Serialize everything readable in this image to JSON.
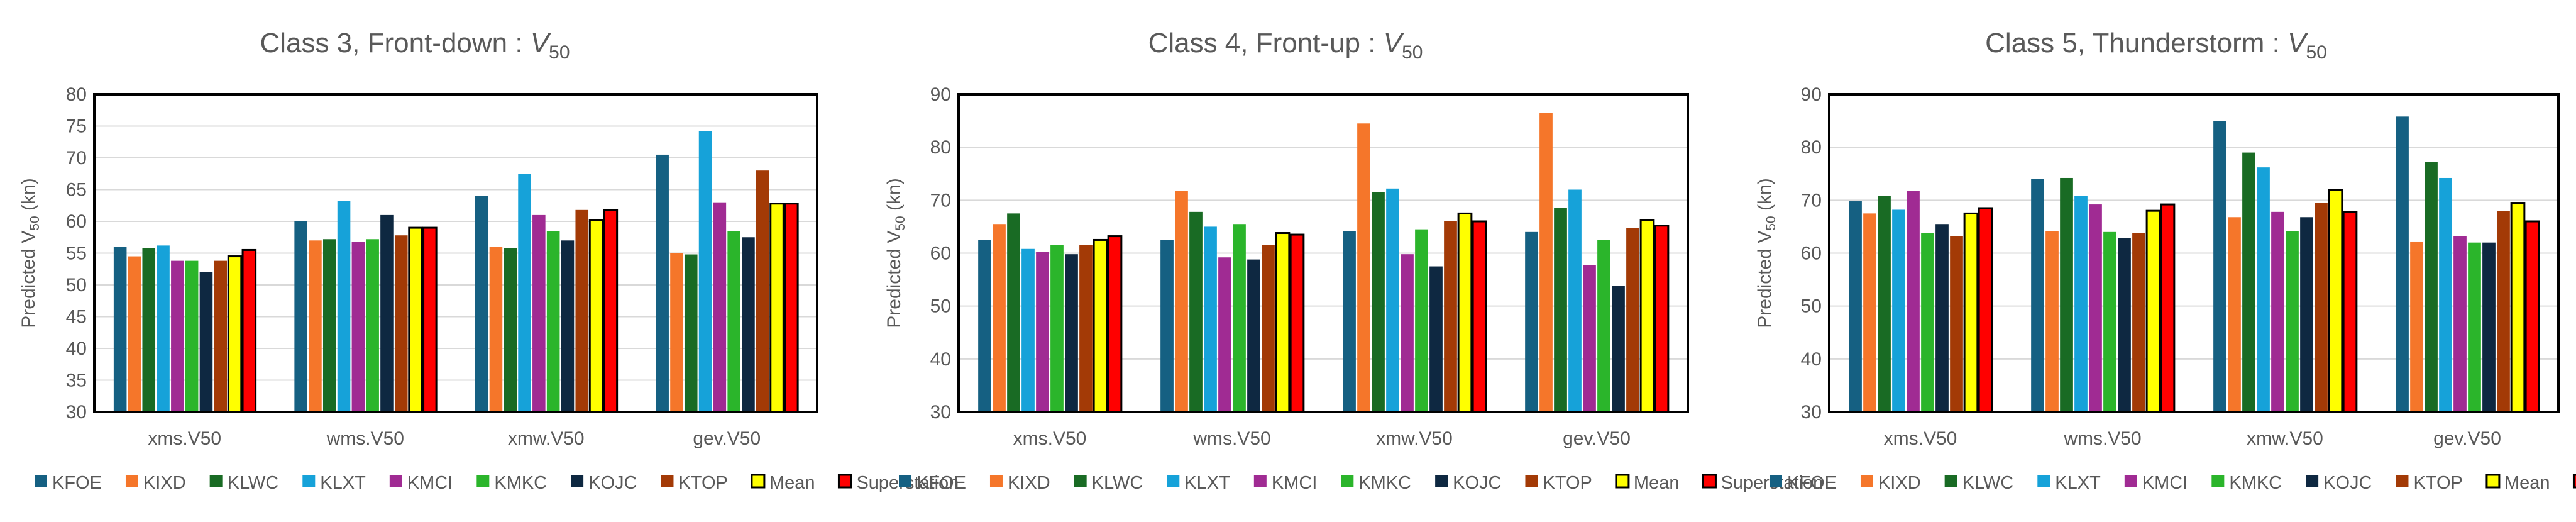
{
  "legend_order": [
    "KFOE",
    "KIXD",
    "KLWC",
    "KLXT",
    "KMCI",
    "KMKC",
    "KOJC",
    "KTOP",
    "Mean",
    "Superstation"
  ],
  "colors": {
    "KFOE": "#156082",
    "KIXD": "#F5762A",
    "KLWC": "#196B24",
    "KLXT": "#16A2D9",
    "KMCI": "#A02B93",
    "KMKC": "#2BB52B",
    "KOJC": "#0E2841",
    "KTOP": "#A33A06",
    "Mean": "#FFFF00",
    "Superstation": "#FF0000"
  },
  "outlined_series": [
    "Mean",
    "Superstation"
  ],
  "chart_data": [
    {
      "type": "bar",
      "title_text": "Class 3, Front-down",
      "title_var": "V",
      "title_sub": "50",
      "ylabel_main": "Predicted V",
      "ylabel_sub": "50",
      "ylabel_unit": " (kn)",
      "ylim": [
        30,
        80
      ],
      "ystep": 5,
      "yticks": [
        "30",
        "35",
        "40",
        "45",
        "50",
        "55",
        "60",
        "65",
        "70",
        "75",
        "80"
      ],
      "categories": [
        "xms.V50",
        "wms.V50",
        "xmw.V50",
        "gev.V50"
      ],
      "grid": true,
      "legend_position": "bottom",
      "series": [
        {
          "name": "KFOE",
          "values": [
            56.0,
            60.0,
            64.0,
            70.5
          ]
        },
        {
          "name": "KIXD",
          "values": [
            54.5,
            57.0,
            56.0,
            55.0
          ]
        },
        {
          "name": "KLWC",
          "values": [
            55.8,
            57.2,
            55.8,
            54.8
          ]
        },
        {
          "name": "KLXT",
          "values": [
            56.2,
            63.2,
            67.5,
            74.2
          ]
        },
        {
          "name": "KMCI",
          "values": [
            53.8,
            56.8,
            61.0,
            63.0
          ]
        },
        {
          "name": "KMKC",
          "values": [
            53.8,
            57.2,
            58.5,
            58.5
          ]
        },
        {
          "name": "KOJC",
          "values": [
            52.0,
            61.0,
            57.0,
            57.5
          ]
        },
        {
          "name": "KTOP",
          "values": [
            53.8,
            57.8,
            61.8,
            68.0
          ]
        },
        {
          "name": "Mean",
          "values": [
            54.5,
            59.0,
            60.2,
            62.8
          ]
        },
        {
          "name": "Superstation",
          "values": [
            55.5,
            59.0,
            61.8,
            62.8
          ]
        }
      ]
    },
    {
      "type": "bar",
      "title_text": "Class 4, Front-up",
      "title_var": "V",
      "title_sub": "50",
      "ylabel_main": "Predicted V",
      "ylabel_sub": "50",
      "ylabel_unit": " (kn)",
      "ylim": [
        30,
        90
      ],
      "ystep": 10,
      "yticks": [
        "30",
        "40",
        "50",
        "60",
        "70",
        "80",
        "90"
      ],
      "categories": [
        "xms.V50",
        "wms.V50",
        "xmw.V50",
        "gev.V50"
      ],
      "grid": true,
      "legend_position": "bottom",
      "series": [
        {
          "name": "KFOE",
          "values": [
            62.5,
            62.5,
            64.2,
            64.0
          ]
        },
        {
          "name": "KIXD",
          "values": [
            65.5,
            71.8,
            84.5,
            86.5
          ]
        },
        {
          "name": "KLWC",
          "values": [
            67.5,
            67.8,
            71.5,
            68.5
          ]
        },
        {
          "name": "KLXT",
          "values": [
            60.8,
            65.0,
            72.2,
            72.0
          ]
        },
        {
          "name": "KMCI",
          "values": [
            60.2,
            59.2,
            59.8,
            57.8
          ]
        },
        {
          "name": "KMKC",
          "values": [
            61.5,
            65.5,
            64.5,
            62.5
          ]
        },
        {
          "name": "KOJC",
          "values": [
            59.8,
            58.8,
            57.5,
            53.8
          ]
        },
        {
          "name": "KTOP",
          "values": [
            61.5,
            61.5,
            66.0,
            64.8
          ]
        },
        {
          "name": "Mean",
          "values": [
            62.5,
            63.8,
            67.5,
            66.2
          ]
        },
        {
          "name": "Superstation",
          "values": [
            63.2,
            63.5,
            66.0,
            65.2
          ]
        }
      ]
    },
    {
      "type": "bar",
      "title_text": "Class 5, Thunderstorm",
      "title_var": "V",
      "title_sub": "50",
      "ylabel_main": "Predicted V",
      "ylabel_sub": "50",
      "ylabel_unit": " (kn)",
      "ylim": [
        30,
        90
      ],
      "ystep": 10,
      "yticks": [
        "30",
        "40",
        "50",
        "60",
        "70",
        "80",
        "90"
      ],
      "categories": [
        "xms.V50",
        "wms.V50",
        "xmw.V50",
        "gev.V50"
      ],
      "grid": true,
      "legend_position": "bottom",
      "series": [
        {
          "name": "KFOE",
          "values": [
            69.8,
            74.0,
            85.0,
            85.8
          ]
        },
        {
          "name": "KIXD",
          "values": [
            67.5,
            64.2,
            66.8,
            62.2
          ]
        },
        {
          "name": "KLWC",
          "values": [
            70.8,
            74.2,
            79.0,
            77.2
          ]
        },
        {
          "name": "KLXT",
          "values": [
            68.2,
            70.8,
            76.2,
            74.2
          ]
        },
        {
          "name": "KMCI",
          "values": [
            71.8,
            69.2,
            67.8,
            63.2
          ]
        },
        {
          "name": "KMKC",
          "values": [
            63.8,
            64.0,
            64.2,
            62.0
          ]
        },
        {
          "name": "KOJC",
          "values": [
            65.5,
            62.8,
            66.8,
            62.0
          ]
        },
        {
          "name": "KTOP",
          "values": [
            63.2,
            63.8,
            69.5,
            68.0
          ]
        },
        {
          "name": "Mean",
          "values": [
            67.5,
            68.0,
            72.0,
            69.5
          ]
        },
        {
          "name": "Superstation",
          "values": [
            68.5,
            69.2,
            67.8,
            66.0
          ]
        }
      ]
    }
  ]
}
